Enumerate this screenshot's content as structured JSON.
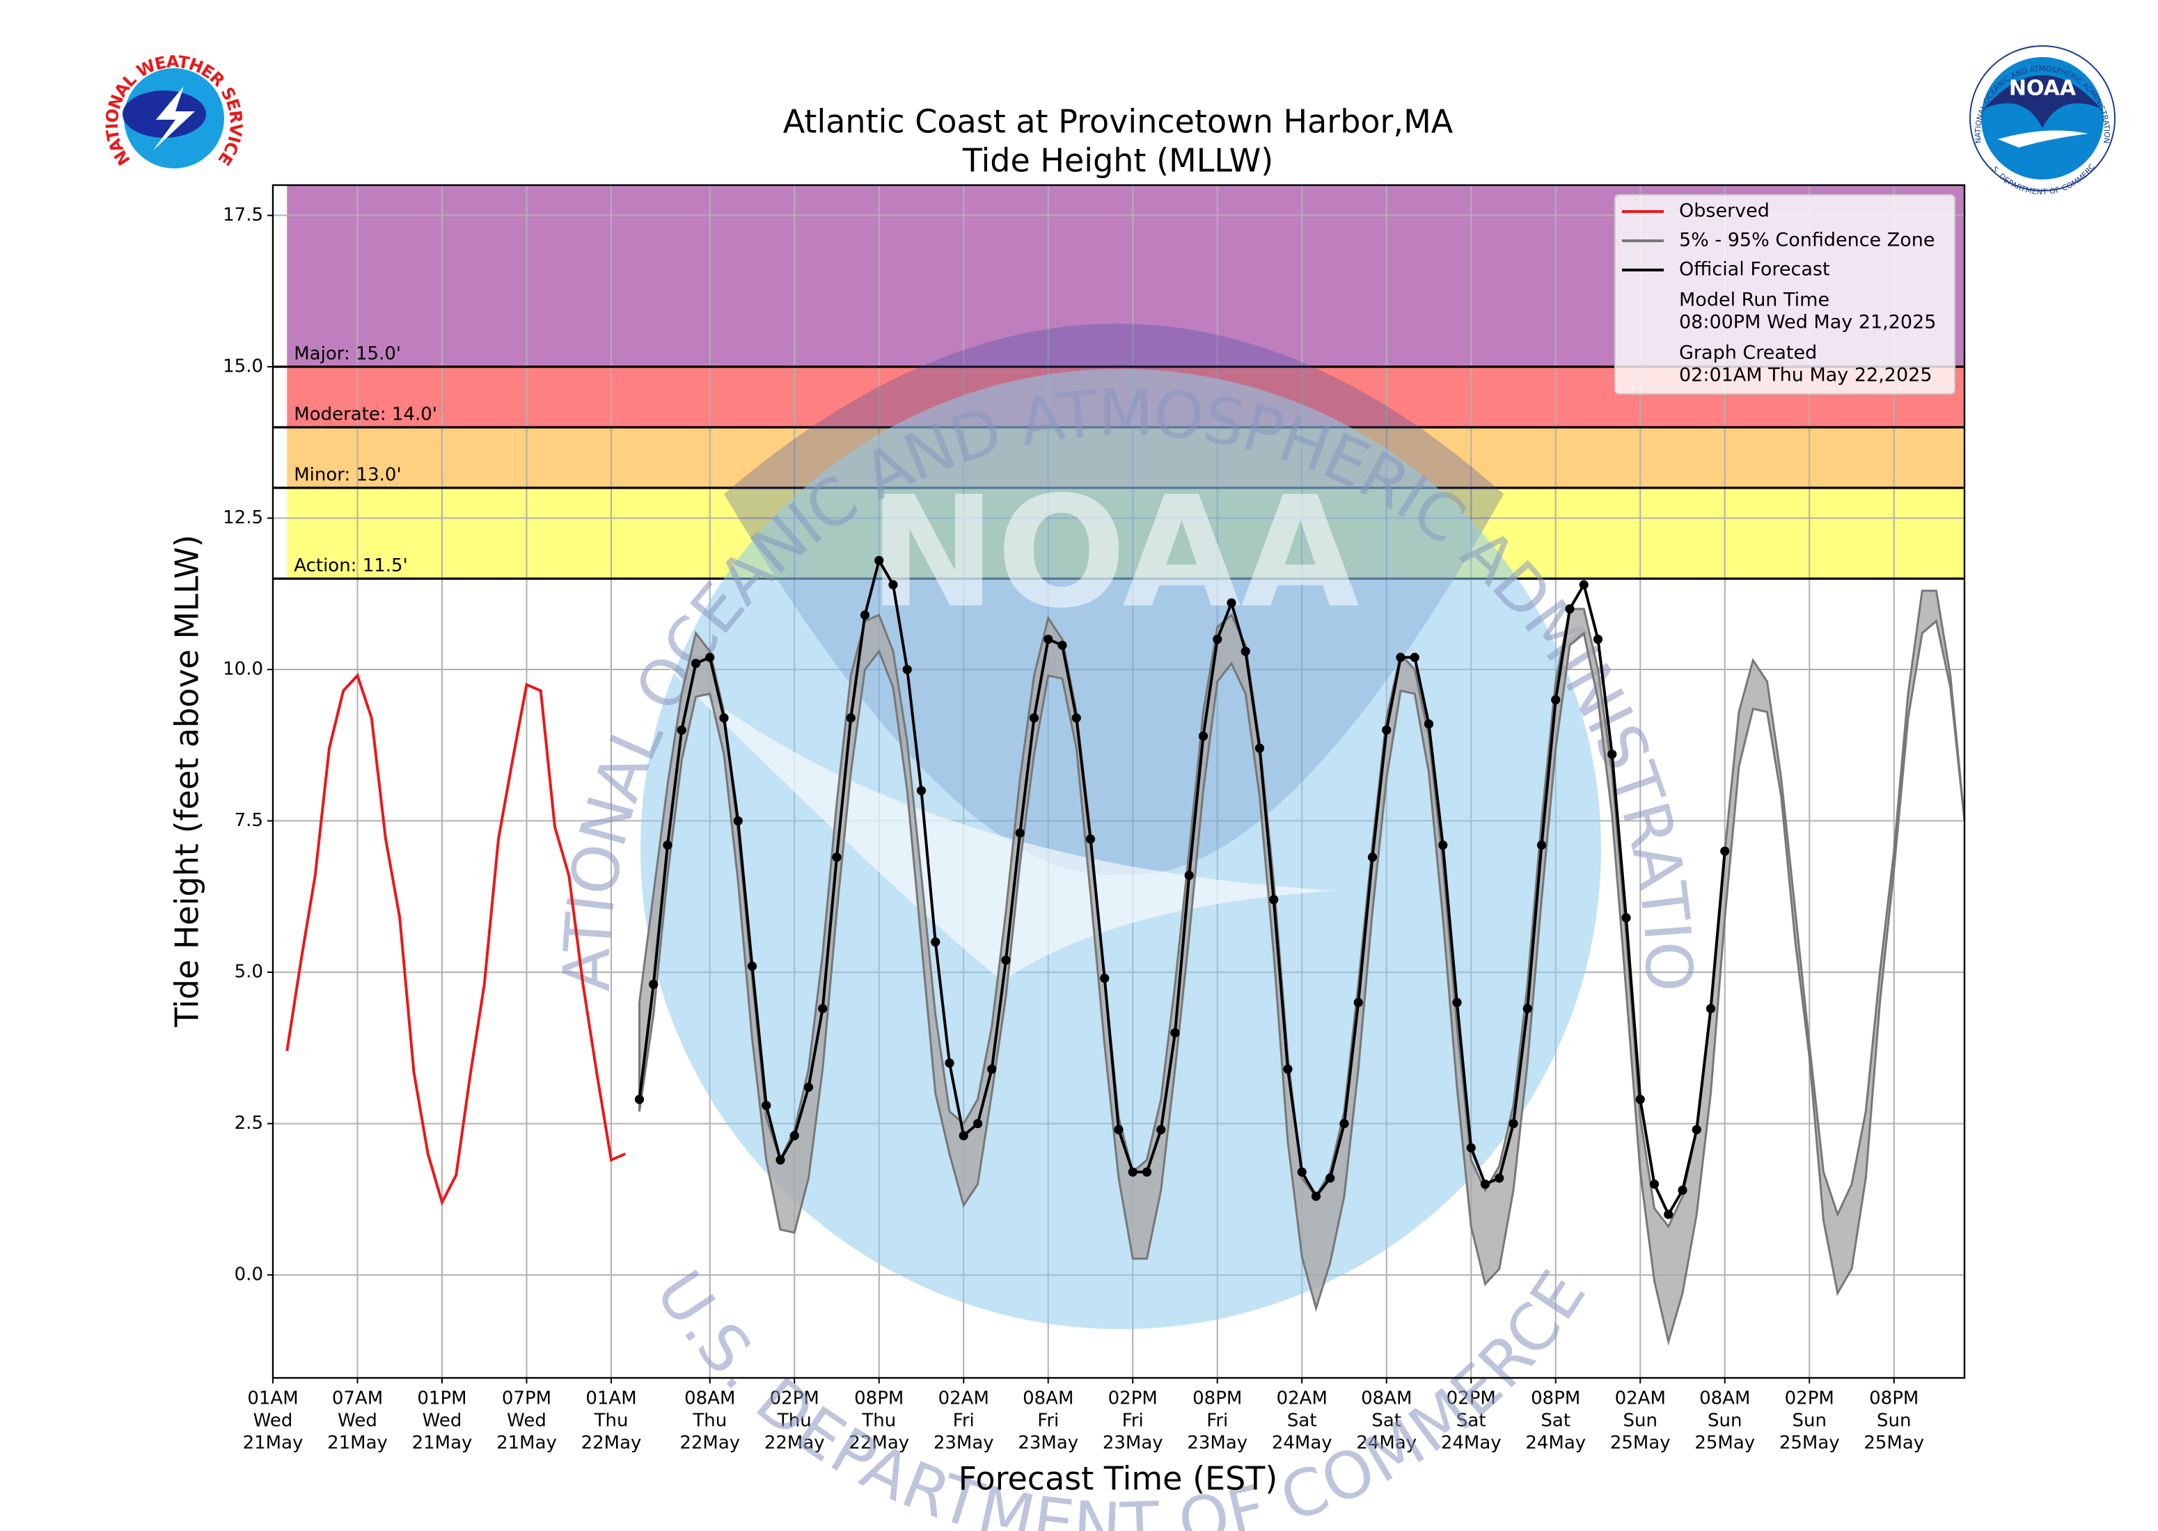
{
  "chart_data": {
    "type": "line",
    "title": "Atlantic Coast at Provincetown Harbor,MA",
    "subtitle": "Tide Height (MLLW)",
    "x_label": "Forecast Time (EST)",
    "y_label": "Tide Height (feet above MLLW)",
    "xlim": [
      0,
      120
    ],
    "xticks": [
      {
        "value": 0,
        "label": [
          "01AM",
          "Wed",
          "21May"
        ]
      },
      {
        "value": 6,
        "label": [
          "07AM",
          "Wed",
          "21May"
        ]
      },
      {
        "value": 12,
        "label": [
          "01PM",
          "Wed",
          "21May"
        ]
      },
      {
        "value": 18,
        "label": [
          "07PM",
          "Wed",
          "21May"
        ]
      },
      {
        "value": 24,
        "label": [
          "01AM",
          "Thu",
          "22May"
        ]
      },
      {
        "value": 31,
        "label": [
          "08AM",
          "Thu",
          "22May"
        ]
      },
      {
        "value": 37,
        "label": [
          "02PM",
          "Thu",
          "22May"
        ]
      },
      {
        "value": 43,
        "label": [
          "08PM",
          "Thu",
          "22May"
        ]
      },
      {
        "value": 49,
        "label": [
          "02AM",
          "Fri",
          "23May"
        ]
      },
      {
        "value": 55,
        "label": [
          "08AM",
          "Fri",
          "23May"
        ]
      },
      {
        "value": 61,
        "label": [
          "02PM",
          "Fri",
          "23May"
        ]
      },
      {
        "value": 67,
        "label": [
          "08PM",
          "Fri",
          "23May"
        ]
      },
      {
        "value": 73,
        "label": [
          "02AM",
          "Sat",
          "24May"
        ]
      },
      {
        "value": 79,
        "label": [
          "08AM",
          "Sat",
          "24May"
        ]
      },
      {
        "value": 85,
        "label": [
          "02PM",
          "Sat",
          "24May"
        ]
      },
      {
        "value": 91,
        "label": [
          "08PM",
          "Sat",
          "24May"
        ]
      },
      {
        "value": 97,
        "label": [
          "02AM",
          "Sun",
          "25May"
        ]
      },
      {
        "value": 103,
        "label": [
          "08AM",
          "Sun",
          "25May"
        ]
      },
      {
        "value": 109,
        "label": [
          "02PM",
          "Sun",
          "25May"
        ]
      },
      {
        "value": 115,
        "label": [
          "08PM",
          "Sun",
          "25May"
        ]
      }
    ],
    "ylim": [
      -1.7,
      18.0
    ],
    "yticks": [
      {
        "value": 0,
        "label": "0.0"
      },
      {
        "value": 2.5,
        "label": "2.5"
      },
      {
        "value": 5,
        "label": "5.0"
      },
      {
        "value": 7.5,
        "label": "7.5"
      },
      {
        "value": 10,
        "label": "10.0"
      },
      {
        "value": 12.5,
        "label": "12.5"
      },
      {
        "value": 15,
        "label": "15.0"
      },
      {
        "value": 17.5,
        "label": "17.5"
      }
    ],
    "grid": true,
    "legend": "upper right",
    "thresholds": [
      {
        "label": "Major: 15.0'",
        "value": 15.0,
        "color": "#bf7fbf"
      },
      {
        "label": "Moderate: 14.0'",
        "value": 14.0,
        "color": "#ff8080"
      },
      {
        "label": "Minor: 13.0'",
        "value": 13.0,
        "color": "#ffd080"
      },
      {
        "label": "Action: 11.5'",
        "value": 11.5,
        "color": "#ffff80"
      }
    ],
    "series": [
      {
        "name": "Observed",
        "color": "#e8191c",
        "x": [
          1,
          2,
          3,
          4,
          5,
          6,
          7,
          8,
          9,
          10,
          11,
          12,
          13,
          14,
          15,
          16,
          17,
          18,
          19,
          20,
          21,
          22,
          23,
          24,
          25
        ],
        "values": [
          3.7,
          5.2,
          6.6,
          8.7,
          9.65,
          9.9,
          9.2,
          7.2,
          5.9,
          3.35,
          2.0,
          1.2,
          1.65,
          3.3,
          4.8,
          7.2,
          8.5,
          9.75,
          9.65,
          7.4,
          6.6,
          4.8,
          3.3,
          1.9,
          2.0
        ]
      },
      {
        "name": "5% - 95% Confidence Zone",
        "color": "#777777",
        "fill": "#aaaaaa",
        "x": [
          26,
          27,
          28,
          29,
          30,
          31,
          32,
          33,
          34,
          35,
          36,
          37,
          38,
          39,
          40,
          41,
          42,
          43,
          44,
          45,
          46,
          47,
          48,
          49,
          50,
          51,
          52,
          53,
          54,
          55,
          56,
          57,
          58,
          59,
          60,
          61,
          62,
          63,
          64,
          65,
          66,
          67,
          68,
          69,
          70,
          71,
          72,
          73,
          74,
          75,
          76,
          77,
          78,
          79,
          80,
          81,
          82,
          83,
          84,
          85,
          86,
          87,
          88,
          89,
          90,
          91,
          92,
          93,
          94,
          95,
          96,
          97,
          98,
          99,
          100,
          101,
          102,
          103,
          104,
          105,
          106,
          107,
          108,
          109,
          110,
          111,
          112,
          113,
          114,
          115,
          116,
          117,
          118,
          119,
          120
        ],
        "upper": [
          4.5,
          6.3,
          8.1,
          9.6,
          10.6,
          10.3,
          9.3,
          7.3,
          4.9,
          2.6,
          1.9,
          2.4,
          3.4,
          5.3,
          7.8,
          9.9,
          10.8,
          10.9,
          10.3,
          8.8,
          6.6,
          4.3,
          2.7,
          2.5,
          2.9,
          4.1,
          6.0,
          8.2,
          9.9,
          10.85,
          10.5,
          9.3,
          7.3,
          4.9,
          2.6,
          1.7,
          1.9,
          2.9,
          4.8,
          7.0,
          9.3,
          10.7,
          10.9,
          10.4,
          8.8,
          6.5,
          3.6,
          1.6,
          1.3,
          1.7,
          2.7,
          4.8,
          7.1,
          9.2,
          10.25,
          10.0,
          8.9,
          6.8,
          4.1,
          1.9,
          1.4,
          1.8,
          2.8,
          4.8,
          7.5,
          9.8,
          11.0,
          11.0,
          10.0,
          8.3,
          5.6,
          2.6,
          1.1,
          0.8,
          1.3,
          2.4,
          4.4,
          7.0,
          9.3,
          10.15,
          9.8,
          8.2,
          6.0,
          3.8,
          1.7,
          1.0,
          1.5,
          2.7,
          5.0,
          7.0,
          9.6,
          11.3,
          11.3,
          9.9,
          7.5
        ],
        "lower": [
          2.7,
          4.3,
          6.6,
          8.5,
          9.55,
          9.6,
          8.6,
          6.5,
          3.9,
          1.9,
          0.75,
          0.7,
          1.6,
          3.4,
          6.0,
          8.3,
          10.0,
          10.3,
          9.7,
          8.0,
          5.5,
          3.0,
          2.0,
          1.15,
          1.5,
          3.0,
          4.6,
          6.8,
          8.6,
          9.9,
          9.85,
          8.7,
          6.3,
          3.8,
          1.6,
          0.27,
          0.27,
          1.4,
          3.4,
          5.6,
          8.0,
          9.8,
          10.1,
          9.6,
          7.9,
          5.3,
          2.2,
          0.3,
          -0.55,
          0.2,
          1.3,
          3.4,
          6.0,
          8.2,
          9.65,
          9.6,
          8.3,
          5.9,
          3.1,
          0.8,
          -0.15,
          0.1,
          1.4,
          3.5,
          6.2,
          8.7,
          10.4,
          10.6,
          9.5,
          7.6,
          4.7,
          1.7,
          -0.1,
          -1.1,
          -0.3,
          1.0,
          3.0,
          5.9,
          8.4,
          9.35,
          9.3,
          7.9,
          5.5,
          3.6,
          0.9,
          -0.3,
          0.1,
          1.6,
          4.5,
          6.7,
          9.2,
          10.6,
          10.8,
          9.7,
          7.5
        ]
      },
      {
        "name": "Official Forecast",
        "color": "#000000",
        "marker": true,
        "x": [
          26,
          27,
          28,
          29,
          30,
          31,
          32,
          33,
          34,
          35,
          36,
          37,
          38,
          39,
          40,
          41,
          42,
          43,
          44,
          45,
          46,
          47,
          48,
          49,
          50,
          51,
          52,
          53,
          54,
          55,
          56,
          57,
          58,
          59,
          60,
          61,
          62,
          63,
          64,
          65,
          66,
          67,
          68,
          69,
          70,
          71,
          72,
          73,
          74,
          75,
          76,
          77,
          78,
          79,
          80,
          81,
          82,
          83,
          84,
          85,
          86,
          87,
          88,
          89,
          90,
          91,
          92,
          93,
          94,
          95,
          96,
          97,
          98,
          99,
          100,
          101,
          102,
          103
        ],
        "values": [
          2.9,
          4.8,
          7.1,
          9.0,
          10.1,
          10.2,
          9.2,
          7.5,
          5.1,
          2.8,
          1.9,
          2.3,
          3.1,
          4.4,
          6.9,
          9.2,
          10.9,
          11.8,
          11.4,
          10.0,
          8.0,
          5.5,
          3.5,
          2.3,
          2.5,
          3.4,
          5.2,
          7.3,
          9.2,
          10.5,
          10.4,
          9.2,
          7.2,
          4.9,
          2.4,
          1.7,
          1.7,
          2.4,
          4.0,
          6.6,
          8.9,
          10.5,
          11.1,
          10.3,
          8.7,
          6.2,
          3.4,
          1.7,
          1.3,
          1.6,
          2.5,
          4.5,
          6.9,
          9.0,
          10.2,
          10.2,
          9.1,
          7.1,
          4.5,
          2.1,
          1.5,
          1.6,
          2.5,
          4.4,
          7.1,
          9.5,
          11.0,
          11.4,
          10.5,
          8.6,
          5.9,
          2.9,
          1.5,
          1.0,
          1.4,
          2.4,
          4.4,
          7.0
        ]
      }
    ],
    "model_run_label": "Model Run Time",
    "model_run": "08:00PM Wed May 21,2025",
    "created_label": "Graph Created",
    "created": "02:01AM Thu May 22,2025"
  },
  "watermark": {
    "top": "NATIONAL OCEANIC AND ATMOSPHERIC ADMINISTRATION",
    "bottom": "U.S. DEPARTMENT OF COMMERCE",
    "center": "NOAA"
  },
  "logos": {
    "nws": "NATIONAL WEATHER SERVICE",
    "noaa": "NOAA",
    "noaa_ring_top": "NATIONAL OCEANIC AND ATMOSPHERIC ADMINISTRATION",
    "noaa_ring_bottom": "U.S. DEPARTMENT OF COMMERCE"
  }
}
